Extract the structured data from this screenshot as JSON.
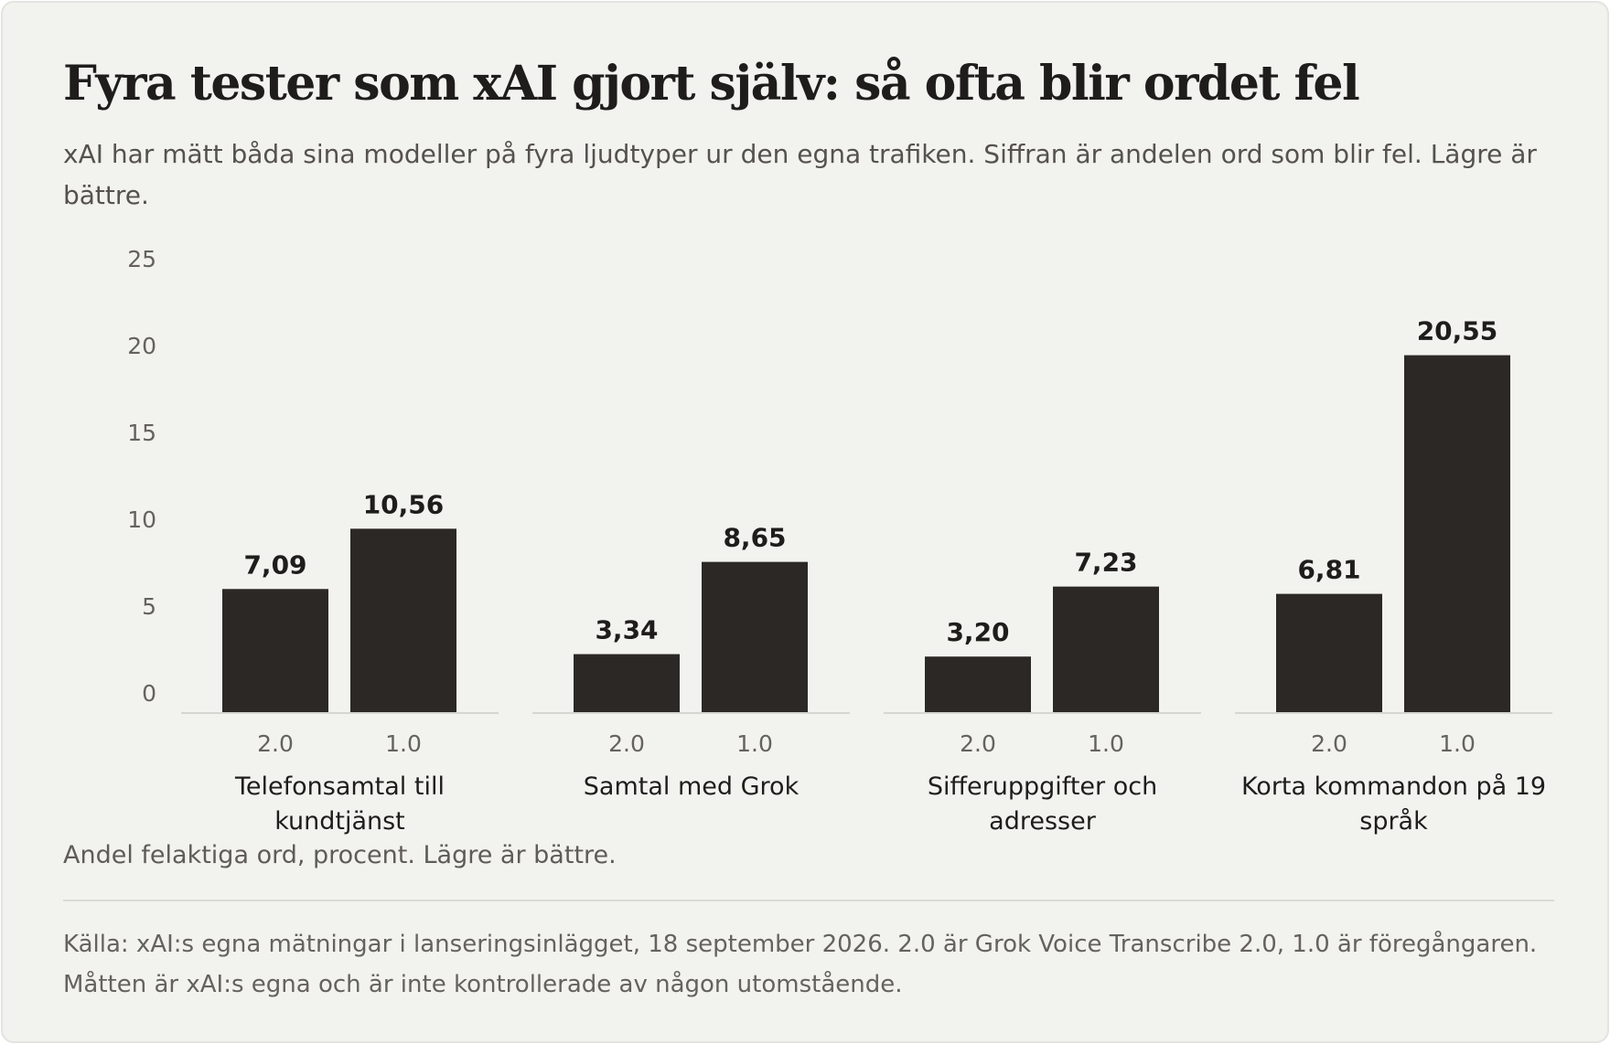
{
  "title": "Fyra tester som xAI gjort själv: så ofta blir ordet fel",
  "subtitle": "xAI har mätt båda sina modeller på fyra ljudtyper ur den egna trafiken. Siffran är andelen ord som blir fel. Lägre är bättre.",
  "unit_note": "Andel felaktiga ord, procent. Lägre är bättre.",
  "source_lines": [
    "Källa: xAI:s egna mätningar i lanseringsinlägget, 18 september 2026. 2.0 är Grok Voice Transcribe 2.0, 1.0 är föregångaren.",
    "Måtten är xAI:s egna och är inte kontrollerade av någon utomstående."
  ],
  "colors": {
    "bar": "#2b2826",
    "value_label": "#1f1d1b",
    "tick_label": "#65625e",
    "category_label": "#1f1d1b",
    "baseline": "#d6d6d1"
  },
  "chart_data": {
    "type": "bar",
    "ylim": [
      0,
      25
    ],
    "y_ticks": [
      0,
      5,
      10,
      15,
      20,
      25
    ],
    "grid": false,
    "legend": "none",
    "series_labels": [
      "2.0",
      "1.0"
    ],
    "groups": [
      {
        "category": [
          "Telefonsamtal till",
          "kundtjänst"
        ],
        "values": [
          7.09,
          10.56
        ],
        "labels": [
          "7,09",
          "10,56"
        ]
      },
      {
        "category": [
          "Samtal med Grok"
        ],
        "values": [
          3.34,
          8.65
        ],
        "labels": [
          "3,34",
          "8,65"
        ]
      },
      {
        "category": [
          "Sifferuppgifter och",
          "adresser"
        ],
        "values": [
          3.2,
          7.23
        ],
        "labels": [
          "3,20",
          "7,23"
        ]
      },
      {
        "category": [
          "Korta kommandon på 19",
          "språk"
        ],
        "values": [
          6.81,
          20.55
        ],
        "labels": [
          "6,81",
          "20,55"
        ]
      }
    ]
  }
}
